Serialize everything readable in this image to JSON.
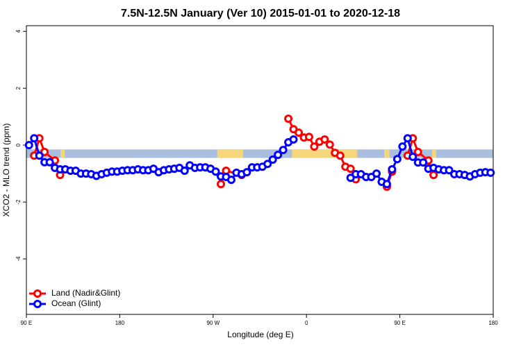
{
  "chart_data": {
    "type": "line",
    "title": "7.5N-12.5N January (Ver 10)   2015-01-01 to 2020-12-18",
    "x_label": "Longitude (deg E)",
    "y_label": "XCO2 - MLO trend (ppm)",
    "xlim": [
      90,
      540
    ],
    "ylim": [
      -5.95,
      4.2
    ],
    "xticks": [
      {
        "value": 90,
        "label": "90 E"
      },
      {
        "value": 180,
        "label": "180"
      },
      {
        "value": 270,
        "label": "90 W"
      },
      {
        "value": 360,
        "label": "0"
      },
      {
        "value": 450,
        "label": "90 E"
      },
      {
        "value": 540,
        "label": "180"
      }
    ],
    "yticks": [
      4,
      2,
      0,
      -2,
      -4
    ],
    "legend": "bottom-left",
    "mask": {
      "ylim": [
        -0.45,
        -0.15
      ],
      "color": "#a8bfe0",
      "land_color": "#f7d57a",
      "land_x": [
        [
          123,
          127
        ],
        [
          274,
          299
        ],
        [
          346,
          409
        ],
        [
          435,
          440
        ],
        [
          481,
          485
        ]
      ]
    },
    "series": [
      {
        "name": "Land (Nadir&Glint)",
        "color": "#ff0000",
        "x": [
          97.5,
          102.5,
          107.5,
          117.5,
          122.5,
          null,
          277.5,
          282.5,
          297.5,
          null,
          342.5,
          347.5,
          352.5,
          357.5,
          362.5,
          367.5,
          372.5,
          377.5,
          382.5,
          387.5,
          392.5,
          397.5,
          402.5,
          407.5,
          null,
          437.5,
          442.5,
          null,
          457.5,
          462.5,
          467.5,
          477.5,
          482.5
        ],
        "values": [
          -0.37,
          0.24,
          -0.24,
          -0.54,
          -1.05,
          null,
          -1.37,
          -0.9,
          -1.05,
          null,
          0.93,
          0.56,
          0.44,
          0.27,
          0.29,
          -0.05,
          0.12,
          0.2,
          0.02,
          -0.27,
          -0.37,
          -0.76,
          -0.83,
          -1.2,
          null,
          -1.46,
          -0.93,
          null,
          -0.37,
          0.24,
          -0.24,
          -0.54,
          -1.05
        ]
      },
      {
        "name": "Ocean (Glint)",
        "color": "#0000ff",
        "x": [
          92.5,
          97.5,
          102.5,
          107.5,
          112.5,
          117.5,
          122.5,
          127.5,
          132.5,
          137.5,
          142.5,
          147.5,
          152.5,
          157.5,
          162.5,
          167.5,
          172.5,
          177.5,
          182.5,
          187.5,
          192.5,
          197.5,
          202.5,
          207.5,
          212.5,
          217.5,
          222.5,
          227.5,
          232.5,
          237.5,
          242.5,
          247.5,
          252.5,
          257.5,
          262.5,
          267.5,
          272.5,
          277.5,
          282.5,
          287.5,
          292.5,
          297.5,
          302.5,
          307.5,
          312.5,
          317.5,
          322.5,
          327.5,
          332.5,
          337.5,
          342.5,
          347.5,
          352.5,
          357.5,
          362.5,
          367.5,
          372.5,
          377.5,
          382.5,
          387.5,
          392.5,
          397.5,
          402.5,
          407.5,
          412.5,
          417.5,
          422.5,
          427.5,
          432.5,
          437.5,
          442.5,
          447.5,
          452.5,
          457.5,
          462.5,
          467.5,
          472.5,
          477.5,
          482.5,
          487.5,
          492.5,
          497.5,
          502.5,
          507.5,
          512.5,
          517.5,
          522.5,
          527.5,
          532.5,
          537.5
        ],
        "values": [
          0.0,
          0.24,
          -0.37,
          -0.6,
          -0.6,
          -0.8,
          -0.85,
          -0.85,
          -0.9,
          -0.9,
          -1.0,
          -1.0,
          -1.02,
          -1.08,
          -1.02,
          -0.97,
          -0.93,
          -0.93,
          -0.9,
          -0.88,
          -0.88,
          -0.85,
          -0.88,
          -0.88,
          -0.83,
          -0.95,
          -0.88,
          -0.85,
          -0.83,
          -0.8,
          -0.9,
          -0.71,
          -0.8,
          -0.78,
          -0.78,
          -0.83,
          -0.93,
          -1.1,
          -1.12,
          -1.22,
          -0.97,
          -1.02,
          -0.95,
          -0.78,
          -0.78,
          -0.76,
          -0.66,
          -0.51,
          -0.34,
          -0.17,
          0.1,
          0.2,
          null,
          null,
          null,
          null,
          null,
          null,
          null,
          null,
          null,
          null,
          -1.15,
          -1.02,
          -1.02,
          -1.12,
          -1.12,
          -1.0,
          -1.29,
          -1.37,
          -0.85,
          -0.49,
          -0.05,
          0.24,
          -0.41,
          -0.61,
          -0.61,
          -0.83,
          -0.8,
          -0.85,
          -0.88,
          -0.88,
          -1.02,
          -1.02,
          -1.05,
          -1.1,
          -1.02,
          -0.97,
          -0.95,
          -0.97
        ]
      }
    ]
  }
}
